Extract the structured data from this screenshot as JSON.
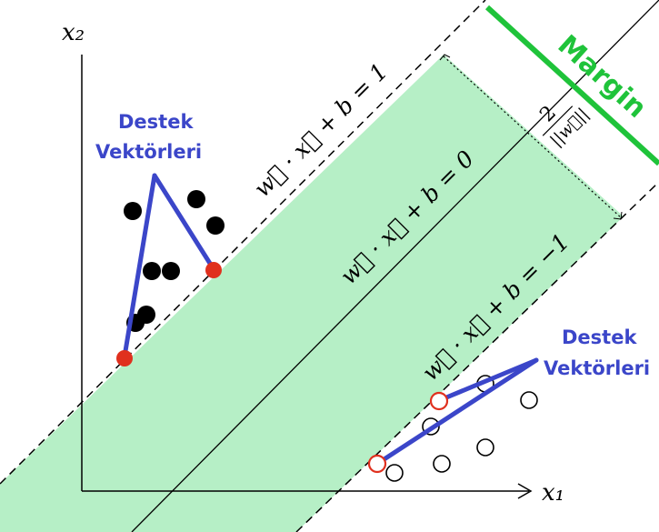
{
  "axes": {
    "x_label": "x₁",
    "y_label": "x₂"
  },
  "hyperplanes": {
    "positive": "w⃗ · x⃗ + b = 1",
    "center": "w⃗ · x⃗ + b = 0",
    "negative": "w⃗ · x⃗ + b = −1"
  },
  "margin": {
    "label": "Margin",
    "formula_numerator": "2",
    "formula_denominator": "||w⃗||"
  },
  "support_vectors": {
    "left_label_line1": "Destek",
    "left_label_line2": "Vektörleri",
    "right_label_line1": "Destek",
    "right_label_line2": "Vektörleri"
  },
  "colors": {
    "margin_fill": "#b6efc6",
    "margin_text": "#1fc33a",
    "support_label": "#3b46c9",
    "support_point": "#e0301e",
    "class_point": "#000000"
  }
}
